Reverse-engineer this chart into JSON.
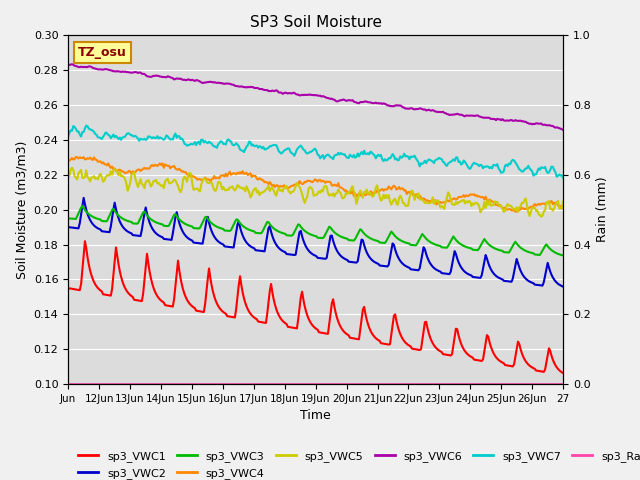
{
  "title": "SP3 Soil Moisture",
  "xlabel": "Time",
  "ylabel_left": "Soil Moisture (m3/m3)",
  "ylabel_right": "Rain (mm)",
  "ylim_left": [
    0.1,
    0.3
  ],
  "ylim_right": [
    0.0,
    1.0
  ],
  "x_tick_labels": [
    "Jun",
    "12Jun",
    "13Jun",
    "14Jun",
    "15Jun",
    "16Jun",
    "17Jun",
    "18Jun",
    "19Jun",
    "20Jun",
    "21Jun",
    "22Jun",
    "23Jun",
    "24Jun",
    "25Jun",
    "26Jun",
    "27"
  ],
  "background_color": "#dcdcdc",
  "annotation_text": "TZ_osu",
  "annotation_bg": "#ffff99",
  "annotation_border": "#cc8800",
  "series": {
    "sp3_VWC1": {
      "color": "#ff0000",
      "linewidth": 1.5
    },
    "sp3_VWC2": {
      "color": "#0000cc",
      "linewidth": 1.5
    },
    "sp3_VWC3": {
      "color": "#00bb00",
      "linewidth": 1.5
    },
    "sp3_VWC4": {
      "color": "#ff8800",
      "linewidth": 1.5
    },
    "sp3_VWC5": {
      "color": "#cccc00",
      "linewidth": 1.5
    },
    "sp3_VWC6": {
      "color": "#aa00aa",
      "linewidth": 1.5
    },
    "sp3_VWC7": {
      "color": "#00cccc",
      "linewidth": 1.5
    },
    "sp3_Rain": {
      "color": "#ff44aa",
      "linewidth": 1.2
    }
  }
}
